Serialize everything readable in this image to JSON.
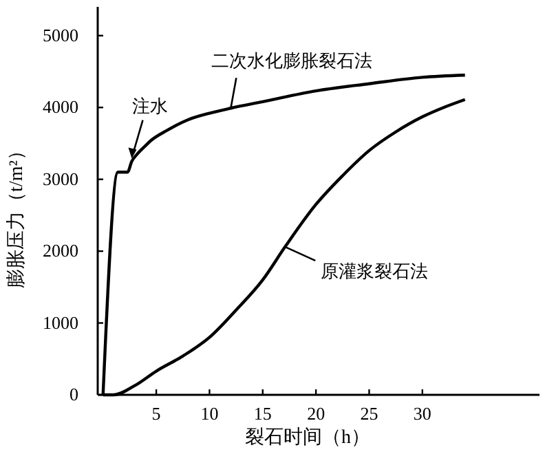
{
  "chart_data": {
    "type": "line",
    "xlabel": "裂石时间（h）",
    "ylabel": "膨胀压力（t/m²）",
    "xlim": [
      -0.5,
      41
    ],
    "ylim": [
      0,
      5400
    ],
    "xticks": [
      5,
      10,
      15,
      20,
      25,
      30
    ],
    "yticks": [
      0,
      1000,
      2000,
      3000,
      4000,
      5000
    ],
    "grid": false,
    "marker": "none",
    "line_style": "solid",
    "series": [
      {
        "name": "二次水化膨胀裂石法",
        "color": "#000000",
        "x": [
          0,
          1.4,
          2.3,
          2.7,
          3.2,
          4,
          4.5,
          6,
          8,
          10,
          12,
          15,
          20,
          25,
          30,
          34
        ],
        "values": [
          0,
          3100,
          3100,
          3250,
          3350,
          3470,
          3540,
          3680,
          3830,
          3920,
          3990,
          4080,
          4230,
          4330,
          4420,
          4450
        ]
      },
      {
        "name": "原灌浆裂石法",
        "color": "#000000",
        "x": [
          0,
          1,
          3,
          5,
          7.5,
          10,
          12.5,
          15,
          17.1,
          20,
          22.5,
          25,
          27.5,
          30,
          32,
          34
        ],
        "values": [
          0,
          0,
          130,
          330,
          540,
          800,
          1180,
          1600,
          2060,
          2650,
          3050,
          3400,
          3660,
          3870,
          4000,
          4110
        ]
      }
    ],
    "annotations": [
      {
        "text": "注水",
        "x": 2.7,
        "y": 3250
      }
    ]
  }
}
